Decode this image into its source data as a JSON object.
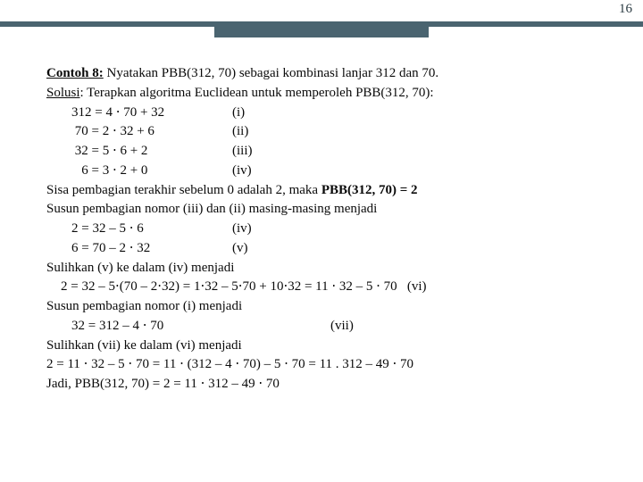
{
  "page_number": "16",
  "header_colors": {
    "bar": "#4a6470"
  },
  "font": {
    "family": "Georgia, serif",
    "size_pt": 15,
    "color": "#0a0a0a"
  },
  "title_label": "Contoh 8:",
  "title_text": " Nyatakan PBB(312, 70) sebagai kombinasi lanjar 312 dan 70.",
  "solusi_label": "Solusi",
  "solusi_text": ": Terapkan algoritma Euclidean untuk memperoleh PBB(312, 70):",
  "steps": [
    {
      "eq": "312 = 4 ⋅ 70 + 32",
      "lbl": "(i)"
    },
    {
      "eq": " 70 = 2 ⋅ 32 + 6",
      "lbl": "(ii)"
    },
    {
      "eq": " 32 = 5 ⋅ 6 + 2",
      "lbl": "(iii)"
    },
    {
      "eq": "   6 = 3 ⋅ 2 + 0",
      "lbl": "(iv)"
    }
  ],
  "line_sisa_a": "Sisa pembagian terakhir sebelum 0 adalah 2, maka ",
  "line_sisa_b": "PBB(312, 70) = 2",
  "line_susun1": "Susun pembagian nomor (iii) dan (ii) masing-masing menjadi",
  "back_steps": [
    {
      "eq": "2 = 32 – 5 ⋅ 6",
      "lbl": "(iv)"
    },
    {
      "eq": "6 = 70 – 2 ⋅ 32",
      "lbl": "(v)"
    }
  ],
  "line_sulih1": "Sulihkan (v) ke dalam (iv) menjadi",
  "line_sulih1_eq": "2 = 32 – 5⋅(70 – 2⋅32) = 1⋅32 – 5⋅70 + 10⋅32 = 11 ⋅ 32 – 5 ⋅ 70   (vi)",
  "line_susun2": "Susun pembagian nomor (i) menjadi",
  "line_susun2_eq": "32 = 312 – 4 ⋅ 70",
  "line_susun2_lbl": "(vii)",
  "line_sulih2": "Sulihkan (vii) ke dalam (vi) menjadi",
  "line_sulih2_eq": "2 = 11 ⋅ 32 – 5 ⋅ 70  = 11 ⋅ (312 – 4 ⋅ 70) – 5 ⋅ 70 = 11 . 312 – 49 ⋅ 70",
  "line_jadi": "Jadi, PBB(312, 70) = 2 = 11 ⋅ 312 – 49 ⋅ 70"
}
